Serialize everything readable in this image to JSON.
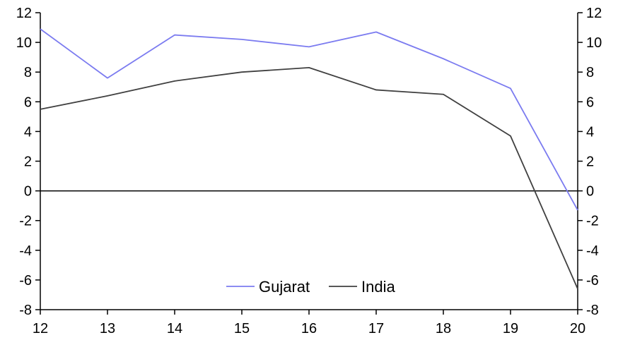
{
  "chart_data": {
    "type": "line",
    "x": [
      12,
      13,
      14,
      15,
      16,
      17,
      18,
      19,
      20
    ],
    "series": [
      {
        "name": "Gujarat",
        "color": "#7b7bf0",
        "values": [
          10.9,
          7.6,
          10.5,
          10.2,
          9.7,
          10.7,
          8.9,
          6.9,
          -1.3
        ]
      },
      {
        "name": "India",
        "color": "#404040",
        "values": [
          5.5,
          6.4,
          7.4,
          8.0,
          8.3,
          6.8,
          6.5,
          3.7,
          -6.6
        ]
      }
    ],
    "ylim": [
      -8,
      12
    ],
    "yticks": [
      12,
      10,
      8,
      6,
      4,
      2,
      0,
      -2,
      -4,
      -6,
      -8
    ],
    "xticks": [
      12,
      13,
      14,
      15,
      16,
      17,
      18,
      19,
      20
    ],
    "dual_y_axis": true,
    "zero_line": true,
    "grid": false,
    "legend_position": "bottom-center"
  }
}
